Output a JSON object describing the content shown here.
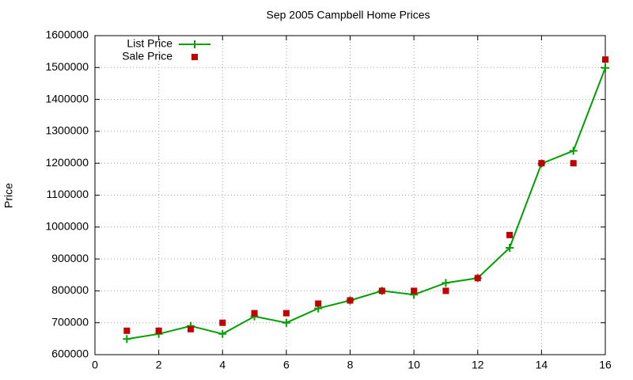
{
  "chart_data": {
    "type": "line",
    "title": "Sep 2005 Campbell Home Prices",
    "y_label": "Price",
    "series": [
      {
        "name": "List Price",
        "color": "#00a000",
        "marker": "plus",
        "x": [
          1,
          2,
          3,
          4,
          5,
          6,
          7,
          8,
          9,
          10,
          11,
          12,
          13,
          14,
          15,
          16
        ],
        "values": [
          649000,
          665000,
          690000,
          665000,
          720000,
          700000,
          745000,
          770000,
          800000,
          788000,
          825000,
          840000,
          935000,
          1199000,
          1239000,
          1499000
        ]
      },
      {
        "name": "Sale Price",
        "color": "#c00000",
        "marker": "square",
        "line": false,
        "x": [
          1,
          2,
          3,
          4,
          5,
          6,
          7,
          8,
          9,
          10,
          11,
          12,
          13,
          14,
          15,
          16
        ],
        "values": [
          675000,
          675000,
          680000,
          700000,
          730000,
          730000,
          760000,
          770000,
          800000,
          800000,
          800000,
          840000,
          975000,
          1200000,
          1200000,
          1525000
        ]
      }
    ],
    "xlim": [
      0,
      16
    ],
    "xticks": [
      0,
      2,
      4,
      6,
      8,
      10,
      12,
      14,
      16
    ],
    "ylim": [
      600000,
      1600000
    ],
    "yticks": [
      600000,
      700000,
      800000,
      900000,
      1000000,
      1100000,
      1200000,
      1300000,
      1400000,
      1500000,
      1600000
    ],
    "grid": true,
    "legend": "top-left"
  }
}
